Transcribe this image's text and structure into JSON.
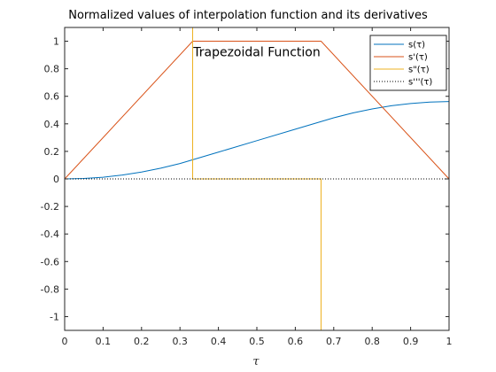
{
  "chart_data": {
    "type": "line",
    "title": "Normalized values of interpolation function and its derivatives",
    "xlabel": "τ",
    "ylabel": "",
    "xlim": [
      0,
      1
    ],
    "ylim": [
      -1.1,
      1.1
    ],
    "xticks": [
      0,
      0.1,
      0.2,
      0.3,
      0.4,
      0.5,
      0.6,
      0.7,
      0.8,
      0.9,
      1
    ],
    "xtick_labels": [
      "0",
      "0.1",
      "0.2",
      "0.3",
      "0.4",
      "0.5",
      "0.6",
      "0.7",
      "0.8",
      "0.9",
      "1"
    ],
    "yticks": [
      -1,
      -0.8,
      -0.6,
      -0.4,
      -0.2,
      0,
      0.2,
      0.4,
      0.6,
      0.8,
      1
    ],
    "ytick_labels": [
      "-1",
      "-0.8",
      "-0.6",
      "-0.4",
      "-0.2",
      "0",
      "0.2",
      "0.4",
      "0.6",
      "0.8",
      "1"
    ],
    "grid": false,
    "legend_position": "top-right",
    "annotation": {
      "text": "Trapezoidal Function",
      "x": 0.5,
      "y": 0.95
    },
    "series": [
      {
        "name": "s(τ)",
        "color": "#0072BD",
        "style": "solid",
        "x": [
          0,
          0.05,
          0.1,
          0.15,
          0.2,
          0.25,
          0.3,
          0.333,
          0.4,
          0.5,
          0.6,
          0.667,
          0.7,
          0.75,
          0.8,
          0.85,
          0.9,
          0.95,
          1
        ],
        "y": [
          0,
          0.003,
          0.012,
          0.028,
          0.05,
          0.078,
          0.112,
          0.1389,
          0.1944,
          0.2778,
          0.3611,
          0.4167,
          0.4438,
          0.4792,
          0.5083,
          0.5313,
          0.5479,
          0.5583,
          0.5617
        ]
      },
      {
        "name": "s'(τ)",
        "color": "#D95319",
        "style": "solid",
        "x": [
          0,
          0.333,
          0.667,
          1
        ],
        "y": [
          0,
          1,
          1,
          0
        ]
      },
      {
        "name": "s\"(τ)",
        "color": "#EDB120",
        "style": "solid",
        "x": [
          0.333,
          0.333,
          0.667,
          0.667
        ],
        "y": [
          1.1,
          0,
          0,
          -1.1
        ]
      },
      {
        "name": "s'''(τ)",
        "color": "#000000",
        "style": "dotted",
        "x": [
          0,
          1
        ],
        "y": [
          0,
          0
        ]
      }
    ]
  }
}
